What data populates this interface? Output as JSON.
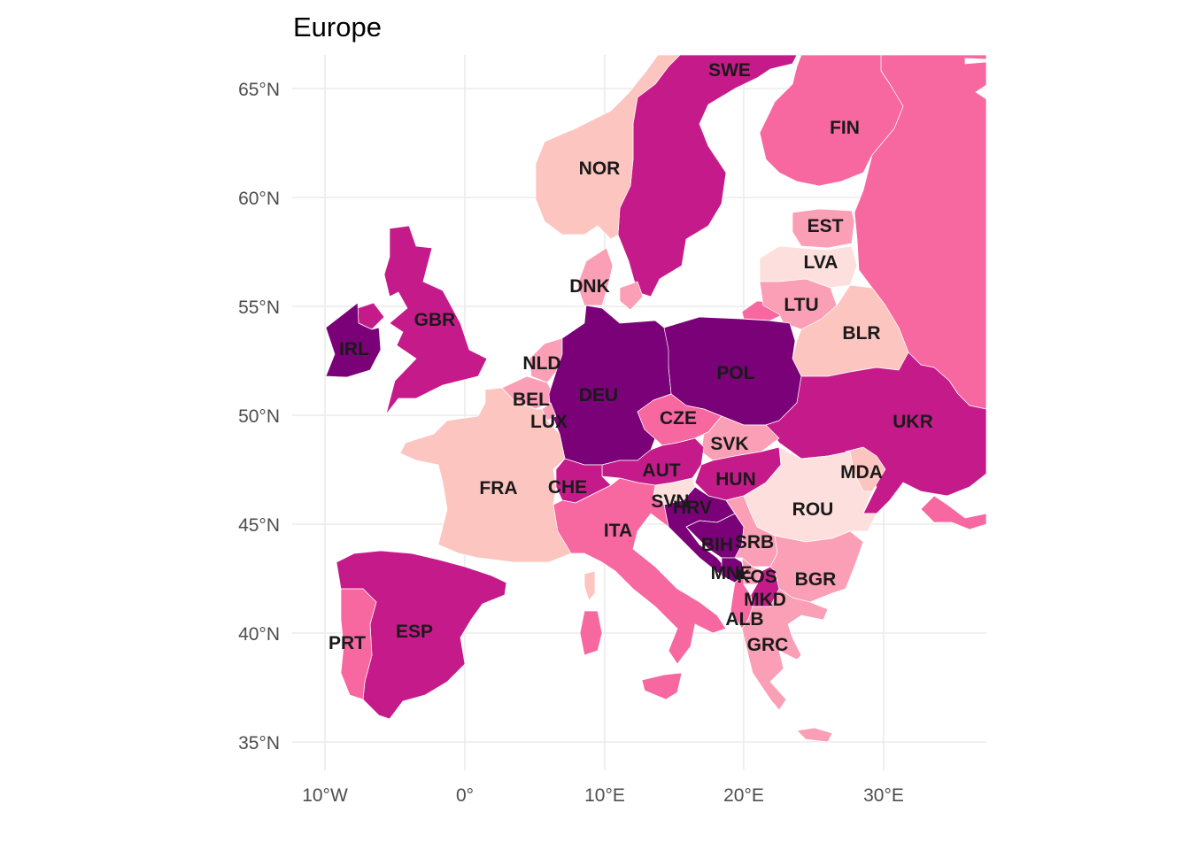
{
  "title": "Europe",
  "palette": {
    "c1": "#fde0dd",
    "c2": "#fcc5c0",
    "c3": "#fa9fb5",
    "c4": "#f768a1",
    "c5": "#c51b8a",
    "c6": "#7a0177"
  },
  "axes": {
    "x_ticks": [
      "10°W",
      "0°",
      "10°E",
      "20°E",
      "30°E"
    ],
    "y_ticks": [
      "65°N",
      "60°N",
      "55°N",
      "50°N",
      "45°N",
      "40°N",
      "35°N"
    ]
  },
  "countries": [
    {
      "code": "SWE",
      "label": "SWE",
      "fill": "c5"
    },
    {
      "code": "FIN",
      "label": "FIN",
      "fill": "c4"
    },
    {
      "code": "NOR",
      "label": "NOR",
      "fill": "c2"
    },
    {
      "code": "EST",
      "label": "EST",
      "fill": "c3"
    },
    {
      "code": "LVA",
      "label": "LVA",
      "fill": "c1"
    },
    {
      "code": "DNK",
      "label": "DNK",
      "fill": "c3"
    },
    {
      "code": "LTU",
      "label": "LTU",
      "fill": "c3"
    },
    {
      "code": "GBR",
      "label": "GBR",
      "fill": "c5"
    },
    {
      "code": "IRL",
      "label": "IRL",
      "fill": "c6"
    },
    {
      "code": "BLR",
      "label": "BLR",
      "fill": "c2"
    },
    {
      "code": "NLD",
      "label": "NLD",
      "fill": "c3"
    },
    {
      "code": "POL",
      "label": "POL",
      "fill": "c6"
    },
    {
      "code": "BEL",
      "label": "BEL",
      "fill": "c3"
    },
    {
      "code": "DEU",
      "label": "DEU",
      "fill": "c6"
    },
    {
      "code": "LUX",
      "label": "LUX",
      "fill": "c3"
    },
    {
      "code": "CZE",
      "label": "CZE",
      "fill": "c4"
    },
    {
      "code": "UKR",
      "label": "UKR",
      "fill": "c5"
    },
    {
      "code": "SVK",
      "label": "SVK",
      "fill": "c3"
    },
    {
      "code": "MDA",
      "label": "MDA",
      "fill": "c2"
    },
    {
      "code": "AUT",
      "label": "AUT",
      "fill": "c5"
    },
    {
      "code": "HUN",
      "label": "HUN",
      "fill": "c5"
    },
    {
      "code": "FRA",
      "label": "FRA",
      "fill": "c2"
    },
    {
      "code": "CHE",
      "label": "CHE",
      "fill": "c5"
    },
    {
      "code": "SVN",
      "label": "SVN",
      "fill": "c1"
    },
    {
      "code": "HRV",
      "label": "HRV",
      "fill": "c6"
    },
    {
      "code": "ROU",
      "label": "ROU",
      "fill": "c1"
    },
    {
      "code": "ITA",
      "label": "ITA",
      "fill": "c4"
    },
    {
      "code": "BIH",
      "label": "BIH",
      "fill": "c6"
    },
    {
      "code": "SRB",
      "label": "SRB",
      "fill": "c3"
    },
    {
      "code": "MNE",
      "label": "MNE",
      "fill": "c6"
    },
    {
      "code": "KOS",
      "label": "KOS",
      "fill": "c3"
    },
    {
      "code": "BGR",
      "label": "BGR",
      "fill": "c3"
    },
    {
      "code": "MKD",
      "label": "MKD",
      "fill": "c5"
    },
    {
      "code": "ALB",
      "label": "ALB",
      "fill": "c4"
    },
    {
      "code": "ESP",
      "label": "ESP",
      "fill": "c5"
    },
    {
      "code": "PRT",
      "label": "PRT",
      "fill": "c4"
    },
    {
      "code": "GRC",
      "label": "GRC",
      "fill": "c3"
    },
    {
      "code": "RUS",
      "label": "",
      "fill": "c4"
    }
  ]
}
